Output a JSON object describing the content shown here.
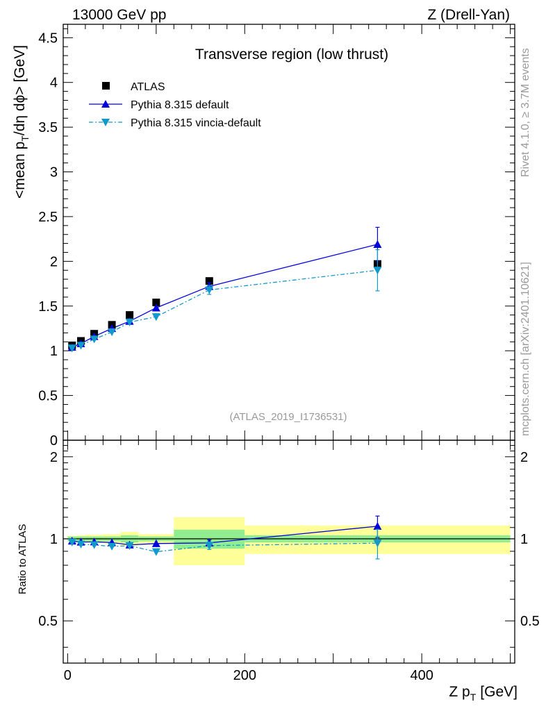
{
  "header": {
    "left": "13000 GeV pp",
    "right": "Z (Drell-Yan)"
  },
  "side_labels": {
    "rivet": "Rivet 4.1.0, ≥ 3.7M events",
    "mcplots": "mcplots.cern.ch [arXiv:2401.10621]"
  },
  "chart_data": {
    "type": "scatter",
    "title": "Transverse region (low thrust)",
    "analysis_label": "(ATLAS_2019_I1736531)",
    "xlabel_main": "Z p",
    "xlabel_sub": "T",
    "xlabel_unit": "[GeV]",
    "ylabel": {
      "prefix": "<mean p",
      "sub": "T",
      "suffix": "/dη dϕ> [GeV]"
    },
    "ratio_ylabel": "Ratio to ATLAS",
    "xlim": [
      -5,
      505
    ],
    "ylim": [
      0,
      4.65
    ],
    "ratio_ylim": [
      0.35,
      2.3
    ],
    "x_ticks": [
      0,
      200,
      400
    ],
    "x_tick_labels": [
      "0",
      "200",
      "400"
    ],
    "y_ticks": [
      0,
      0.5,
      1,
      1.5,
      2,
      2.5,
      3,
      3.5,
      4,
      4.5
    ],
    "y_tick_labels": [
      "0",
      "0.5",
      "1",
      "1.5",
      "2",
      "2.5",
      "3",
      "3.5",
      "4",
      "4.5"
    ],
    "ratio_ticks": [
      0.5,
      1,
      2
    ],
    "ratio_tick_labels": [
      "0.5",
      "1",
      "2"
    ],
    "legend": [
      "ATLAS",
      "Pythia 8.315 default",
      "Pythia 8.315 vincia-default"
    ],
    "bins": [
      [
        0,
        10
      ],
      [
        10,
        20
      ],
      [
        20,
        40
      ],
      [
        40,
        60
      ],
      [
        60,
        80
      ],
      [
        80,
        120
      ],
      [
        120,
        200
      ],
      [
        200,
        500
      ]
    ],
    "band_inner": [
      0.02,
      0.02,
      0.02,
      0.02,
      0.03,
      0.02,
      0.08,
      0.03
    ],
    "band_outer": [
      0.025,
      0.03,
      0.035,
      0.04,
      0.06,
      0.04,
      0.2,
      0.12
    ],
    "series": [
      {
        "name": "ATLAS",
        "color": "#000000",
        "x": [
          5,
          15,
          30,
          50,
          70,
          100,
          160,
          350
        ],
        "y": [
          1.06,
          1.11,
          1.19,
          1.29,
          1.4,
          1.54,
          1.78,
          1.97
        ]
      },
      {
        "name": "Pythia 8.315 default",
        "color": "#0000dd",
        "x": [
          5,
          15,
          30,
          50,
          70,
          100,
          160,
          350
        ],
        "y": [
          1.04,
          1.08,
          1.16,
          1.25,
          1.33,
          1.48,
          1.72,
          2.19
        ],
        "err": [
          0.01,
          0.01,
          0.01,
          0.01,
          0.01,
          0.01,
          0.04,
          0.19
        ],
        "ratio": [
          0.982,
          0.973,
          0.975,
          0.969,
          0.95,
          0.961,
          0.966,
          1.112
        ],
        "ratio_err": [
          0.01,
          0.01,
          0.01,
          0.01,
          0.01,
          0.01,
          0.025,
          0.1
        ]
      },
      {
        "name": "Pythia 8.315 vincia-default",
        "color": "#1199cc",
        "x": [
          5,
          15,
          30,
          50,
          70,
          100,
          160,
          350
        ],
        "y": [
          1.03,
          1.06,
          1.13,
          1.21,
          1.32,
          1.38,
          1.68,
          1.9
        ],
        "err": [
          0.01,
          0.01,
          0.01,
          0.01,
          0.01,
          0.01,
          0.05,
          0.23
        ],
        "ratio": [
          0.972,
          0.955,
          0.95,
          0.938,
          0.943,
          0.896,
          0.944,
          0.964
        ],
        "ratio_err": [
          0.01,
          0.01,
          0.01,
          0.01,
          0.01,
          0.01,
          0.03,
          0.12
        ]
      }
    ],
    "colors": {
      "band_inner": "#90ee90",
      "band_outer": "#ffff99",
      "grey_text": "#999999"
    }
  }
}
